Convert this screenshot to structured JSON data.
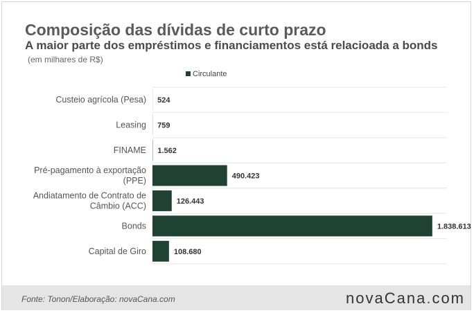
{
  "header": {
    "title": "Composição das dívidas de curto prazo",
    "subtitle": "A maior parte dos empréstimos e financiamentos está relacioada a bonds",
    "unit": "(em milhares de R$)"
  },
  "chart_data": {
    "type": "bar",
    "orientation": "horizontal",
    "categories": [
      [
        "Custeio agrícola (Pesa)"
      ],
      [
        "Leasing"
      ],
      [
        "FINAME"
      ],
      [
        "Pré-pagamento à exportação",
        "(PPE)"
      ],
      [
        "Andiatamento de Contrato de",
        "Câmbio (ACC)"
      ],
      [
        "Bonds"
      ],
      [
        "Capital de Giro"
      ]
    ],
    "series": [
      {
        "name": "Circulante",
        "color": "#1f4233",
        "values": [
          524,
          759,
          1562,
          490423,
          126443,
          1838613,
          108680
        ],
        "labels": [
          "524",
          "759",
          "1.562",
          "490.423",
          "126.443",
          "1.838.613",
          "108.680"
        ]
      }
    ],
    "xlim": [
      0,
      1935000
    ],
    "grid": true,
    "legend_position": "top"
  },
  "footer": {
    "source": "Fonte: Tonon/Elaboração: novaCana.com",
    "logo_main": "novaCana",
    "logo_dot": ".",
    "logo_suffix": "com"
  }
}
